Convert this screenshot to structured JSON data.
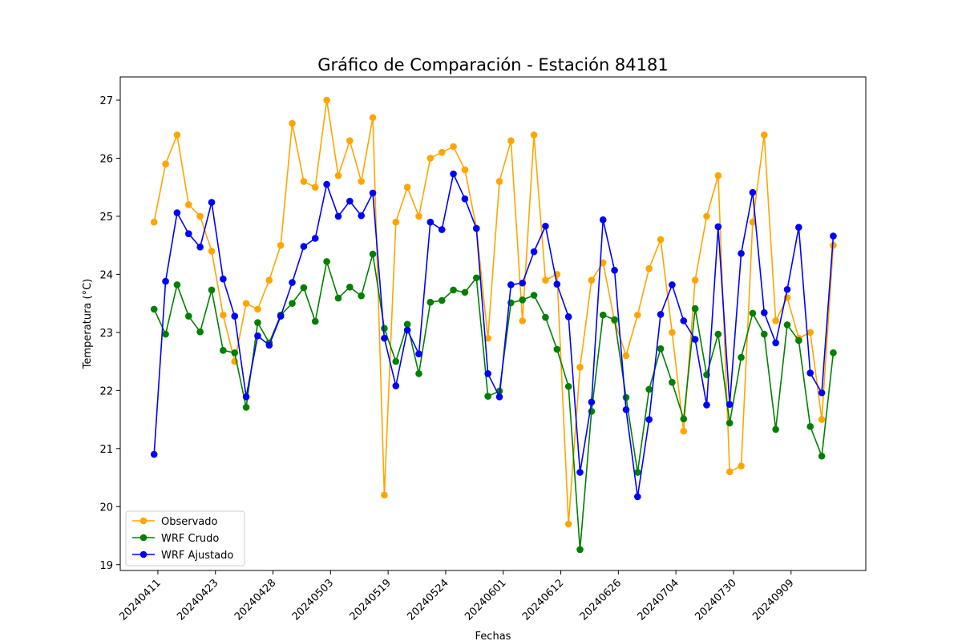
{
  "chart_data": {
    "type": "line",
    "title": "Gráfico de Comparación - Estación 84181",
    "xlabel": "Fechas",
    "ylabel": "Temperatura (°C)",
    "ylim": [
      18.9,
      27.4
    ],
    "yticks": [
      19,
      20,
      21,
      22,
      23,
      24,
      25,
      26,
      27
    ],
    "xticks": [
      {
        "index": 0.33,
        "label": "20240411"
      },
      {
        "index": 5.33,
        "label": "20240423"
      },
      {
        "index": 10.33,
        "label": "20240428"
      },
      {
        "index": 15.33,
        "label": "20240503"
      },
      {
        "index": 20.33,
        "label": "20240519"
      },
      {
        "index": 25.33,
        "label": "20240524"
      },
      {
        "index": 30.33,
        "label": "20240601"
      },
      {
        "index": 35.33,
        "label": "20240612"
      },
      {
        "index": 40.33,
        "label": "20240626"
      },
      {
        "index": 45.33,
        "label": "20240704"
      },
      {
        "index": 50.33,
        "label": "20240730"
      },
      {
        "index": 55.33,
        "label": "20240909"
      }
    ],
    "legend_position": "lower-left",
    "series": [
      {
        "name": "Observado",
        "color": "#ffa500",
        "values": [
          24.9,
          25.9,
          26.4,
          25.2,
          25.0,
          24.4,
          23.3,
          22.5,
          23.5,
          23.4,
          23.9,
          24.5,
          26.6,
          25.6,
          25.5,
          27.0,
          25.7,
          26.3,
          25.6,
          26.7,
          20.2,
          24.9,
          25.5,
          25.0,
          26.0,
          26.1,
          26.2,
          25.8,
          24.8,
          22.9,
          25.6,
          26.3,
          23.2,
          26.4,
          23.9,
          24.0,
          19.7,
          22.4,
          23.9,
          24.2,
          23.2,
          22.6,
          23.3,
          24.1,
          24.6,
          23.0,
          21.3,
          23.9,
          25.0,
          25.7,
          20.6,
          20.7,
          24.9,
          26.4,
          23.2,
          23.6,
          22.9,
          23.0,
          21.5,
          24.5
        ]
      },
      {
        "name": "WRF Crudo",
        "color": "#008000",
        "values": [
          23.4,
          22.97,
          23.82,
          23.28,
          23.01,
          23.73,
          22.69,
          22.65,
          21.71,
          23.17,
          22.82,
          23.3,
          23.5,
          23.77,
          23.19,
          24.22,
          23.59,
          23.78,
          23.63,
          24.35,
          23.07,
          22.5,
          23.14,
          22.29,
          23.52,
          23.55,
          23.73,
          23.69,
          23.94,
          21.9,
          21.99,
          23.51,
          23.56,
          23.64,
          23.26,
          22.71,
          22.07,
          19.26,
          21.64,
          23.3,
          23.22,
          21.88,
          20.59,
          22.02,
          22.72,
          22.14,
          21.51,
          23.41,
          22.27,
          22.97,
          21.44,
          22.57,
          23.33,
          22.97,
          21.33,
          23.13,
          22.86,
          21.38,
          20.87,
          22.65
        ]
      },
      {
        "name": "WRF Ajustado",
        "color": "#0000ff",
        "values": [
          20.9,
          23.88,
          25.06,
          24.7,
          24.47,
          25.24,
          23.92,
          23.28,
          21.89,
          22.94,
          22.78,
          23.28,
          23.86,
          24.48,
          24.62,
          25.55,
          25.0,
          25.26,
          25.01,
          25.4,
          22.9,
          22.08,
          23.04,
          22.63,
          24.9,
          24.77,
          25.73,
          25.3,
          24.79,
          22.29,
          21.89,
          23.82,
          23.85,
          24.39,
          24.83,
          23.83,
          23.27,
          20.59,
          21.8,
          24.94,
          24.07,
          21.67,
          20.17,
          21.5,
          23.31,
          23.82,
          23.2,
          22.88,
          21.75,
          24.82,
          21.76,
          24.36,
          25.41,
          23.34,
          22.82,
          23.74,
          24.81,
          22.3,
          21.96,
          24.66
        ]
      }
    ]
  }
}
